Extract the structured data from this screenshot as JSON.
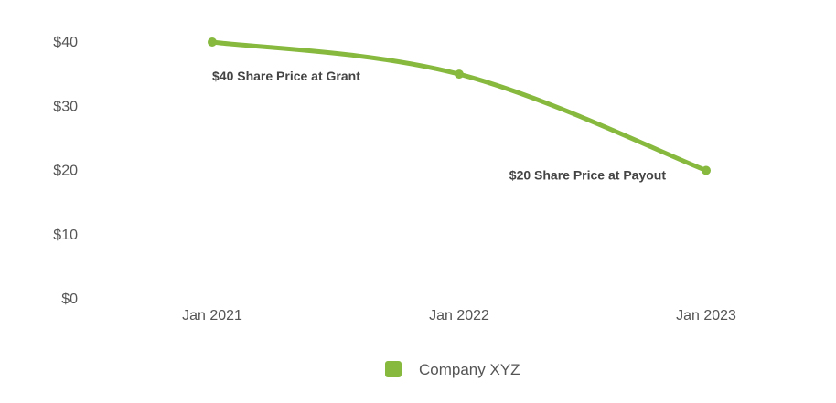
{
  "chart_data": {
    "type": "line",
    "title": "",
    "xlabel": "",
    "ylabel": "",
    "categories": [
      "Jan 2021",
      "Jan 2022",
      "Jan 2023"
    ],
    "yticks": [
      "$0",
      "$10",
      "$20",
      "$30",
      "$40"
    ],
    "ylim": [
      0,
      40
    ],
    "grid": false,
    "legend": "bottom-center",
    "series": [
      {
        "name": "Company XYZ",
        "color": "#86b93e",
        "values": [
          40,
          35,
          20
        ]
      }
    ],
    "annotations": [
      {
        "text": "$40 Share Price at Grant",
        "point_index": 0
      },
      {
        "text": "$20 Share Price at Payout",
        "point_index": 2
      }
    ]
  }
}
